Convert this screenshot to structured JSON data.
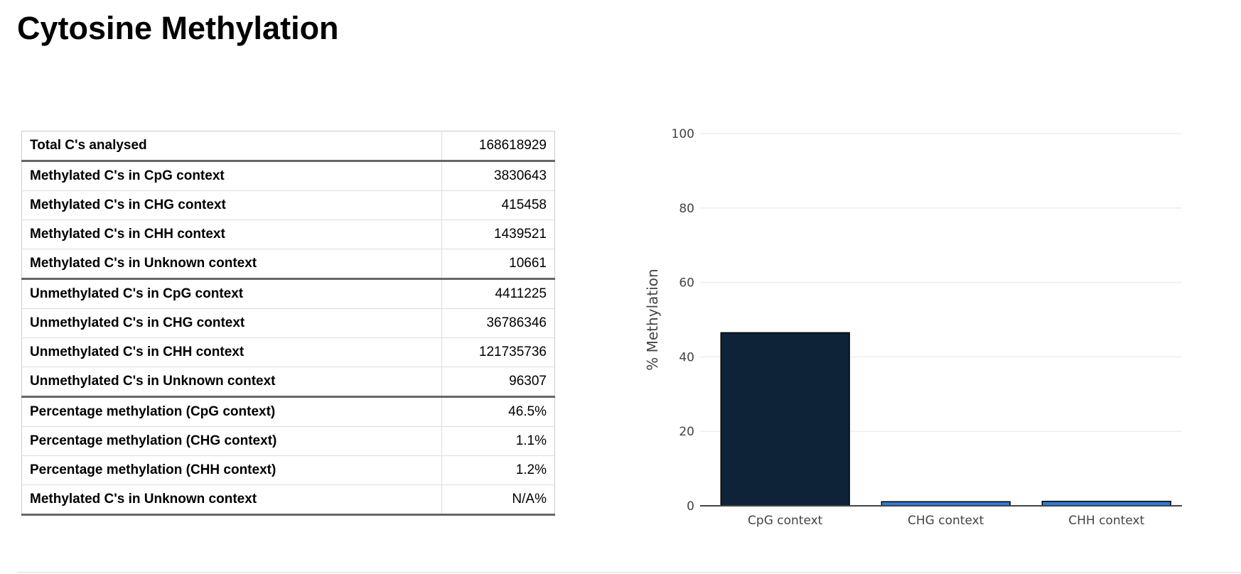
{
  "title": "Cytosine Methylation",
  "table": [
    {
      "label": "Total C's analysed",
      "value": "168618929"
    },
    {
      "label": "Methylated C's in CpG context",
      "value": "3830643"
    },
    {
      "label": "Methylated C's in CHG context",
      "value": "415458"
    },
    {
      "label": "Methylated C's in CHH context",
      "value": "1439521"
    },
    {
      "label": "Methylated C's in Unknown context",
      "value": "10661"
    },
    {
      "label": "Unmethylated C's in CpG context",
      "value": "4411225"
    },
    {
      "label": "Unmethylated C's in CHG context",
      "value": "36786346"
    },
    {
      "label": "Unmethylated C's in CHH context",
      "value": "121735736"
    },
    {
      "label": "Unmethylated C's in Unknown context",
      "value": "96307"
    },
    {
      "label": "Percentage methylation (CpG context)",
      "value": "46.5%"
    },
    {
      "label": "Percentage methylation (CHG context)",
      "value": "1.1%"
    },
    {
      "label": "Percentage methylation (CHH context)",
      "value": "1.2%"
    },
    {
      "label": "Methylated C's in Unknown context",
      "value": "N/A%"
    }
  ],
  "chart_data": {
    "type": "bar",
    "categories": [
      "CpG context",
      "CHG context",
      "CHH context"
    ],
    "values": [
      46.5,
      1.1,
      1.2
    ],
    "colors": [
      "#0f2338",
      "#2f7ad6",
      "#2f7ad6"
    ],
    "title": "",
    "xlabel": "",
    "ylabel": "% Methylation",
    "ylim": [
      0,
      100
    ],
    "yticks": [
      0,
      20,
      40,
      60,
      80,
      100
    ],
    "grid": true
  }
}
